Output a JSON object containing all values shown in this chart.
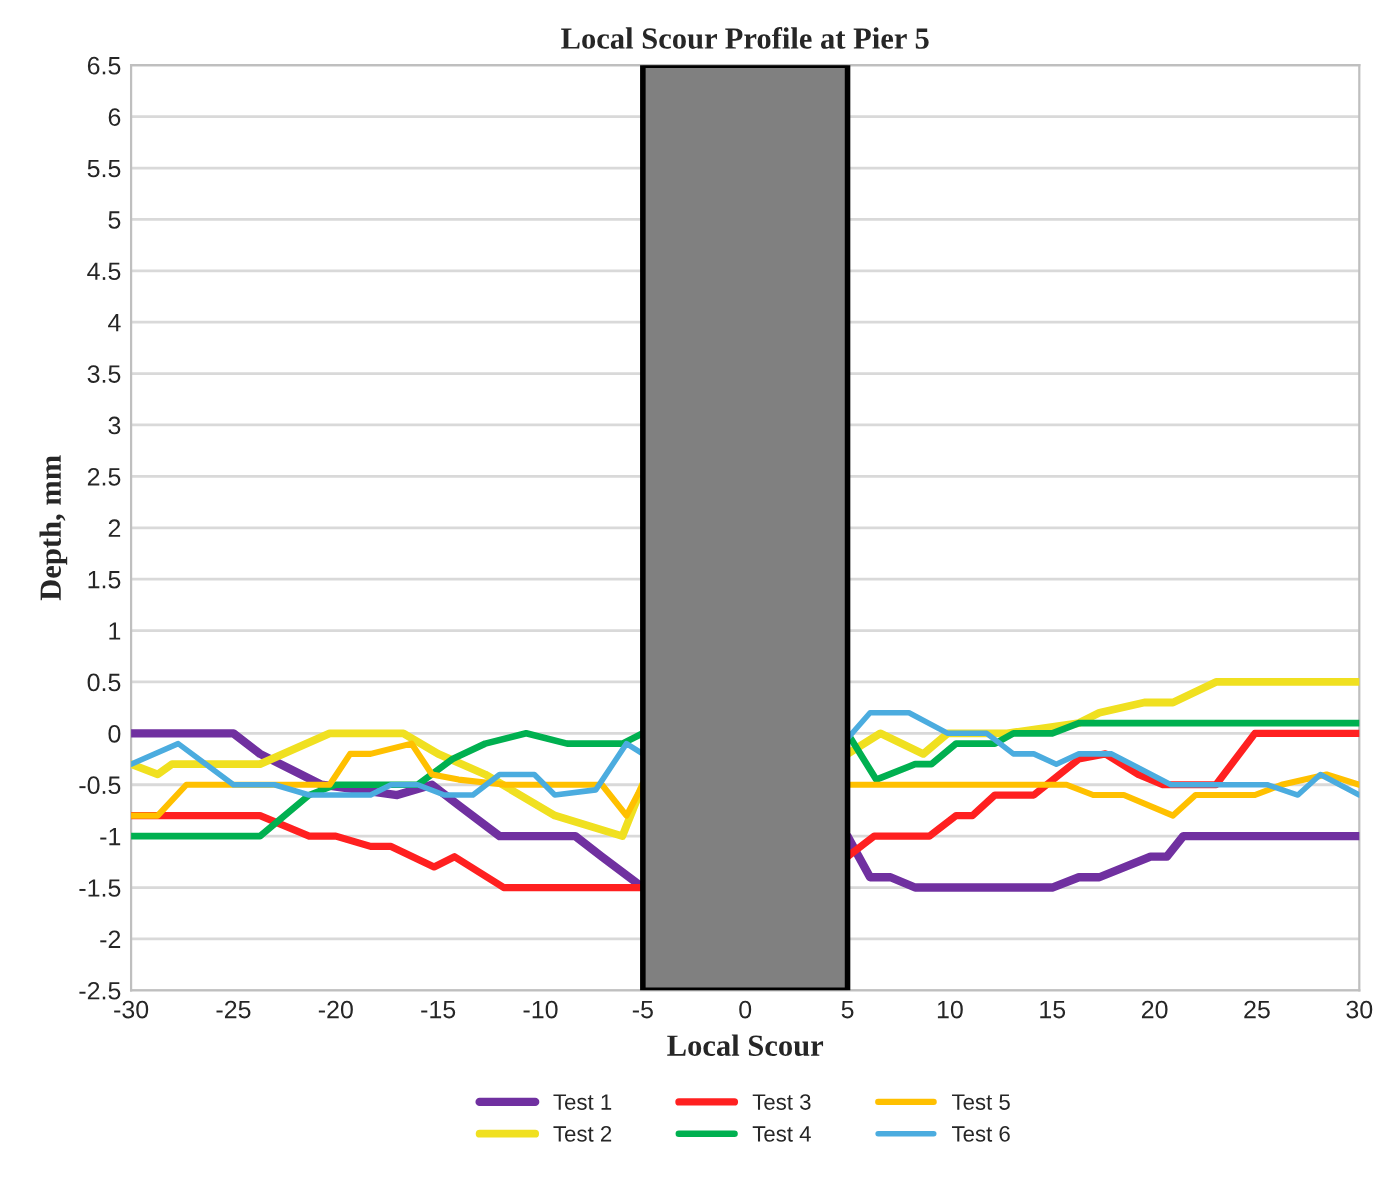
{
  "chart_data": {
    "type": "line",
    "title": "Local Scour Profile at Pier 5",
    "xlabel": "Local Scour",
    "ylabel": "Depth, mm",
    "series": [
      {
        "name": "Test 1",
        "color": "#7030a0",
        "x": [
          -30,
          -25,
          -23.7,
          -20.7,
          -17,
          -15.3,
          -14,
          -12,
          -8.3,
          -7,
          -5,
          null,
          5,
          6.1,
          7.1,
          8.3,
          15,
          16.3,
          17.3,
          19.8,
          20.6,
          21.4,
          30
        ],
        "values": [
          0,
          0,
          -0.2,
          -0.5,
          -0.6,
          -0.5,
          -0.7,
          -1,
          -1,
          -1.2,
          -1.5,
          null,
          -1,
          -1.4,
          -1.4,
          -1.5,
          -1.5,
          -1.4,
          -1.4,
          -1.2,
          -1.2,
          -1,
          -1
        ]
      },
      {
        "name": "Test 2",
        "color": "#f0e020",
        "x": [
          -30,
          -28.7,
          -28,
          -23.7,
          -20.3,
          -16.7,
          -15,
          -12.7,
          -9.3,
          -6,
          -5,
          null,
          5,
          6.6,
          8.7,
          9.9,
          12.8,
          16.3,
          17.3,
          19.5,
          20.9,
          23,
          30
        ],
        "values": [
          -0.3,
          -0.4,
          -0.3,
          -0.3,
          0,
          0,
          -0.2,
          -0.4,
          -0.8,
          -1,
          -0.5,
          null,
          -0.2,
          0,
          -0.2,
          0,
          0,
          0.1,
          0.2,
          0.3,
          0.3,
          0.5,
          0.5
        ]
      },
      {
        "name": "Test 3",
        "color": "#ff2020",
        "x": [
          -30,
          -23.7,
          -21.3,
          -20,
          -18.3,
          -17.3,
          -15.2,
          -14.2,
          -11.8,
          -5,
          null,
          5,
          6.3,
          9,
          10.3,
          11.1,
          12.2,
          14.1,
          16.3,
          17.6,
          19.2,
          20.4,
          23,
          24.9,
          30
        ],
        "values": [
          -0.8,
          -0.8,
          -1,
          -1,
          -1.1,
          -1.1,
          -1.3,
          -1.2,
          -1.5,
          -1.5,
          null,
          -1.2,
          -1,
          -1,
          -0.8,
          -0.8,
          -0.6,
          -0.6,
          -0.25,
          -0.2,
          -0.4,
          -0.5,
          -0.5,
          0,
          0
        ]
      },
      {
        "name": "Test 4",
        "color": "#00b050",
        "x": [
          -30,
          -23.7,
          -21.3,
          -20,
          -16,
          -14.3,
          -12.7,
          -10.7,
          -8.7,
          -6,
          -5,
          null,
          5,
          6.4,
          8.3,
          9.1,
          10.3,
          12.2,
          13.1,
          15,
          16.3,
          30
        ],
        "values": [
          -1,
          -1,
          -0.6,
          -0.5,
          -0.5,
          -0.25,
          -0.1,
          0,
          -0.1,
          -0.1,
          0,
          null,
          0,
          -0.45,
          -0.3,
          -0.3,
          -0.1,
          -0.1,
          0,
          0,
          0.1,
          0.1
        ]
      },
      {
        "name": "Test 5",
        "color": "#ffc000",
        "x": [
          -30,
          -28.7,
          -27.3,
          -20.3,
          -19.3,
          -18.3,
          -16.3,
          -15.3,
          -14,
          -11.7,
          -7,
          -5.8,
          -5,
          null,
          5,
          15.7,
          17,
          18.5,
          20.9,
          22,
          24.9,
          26.2,
          28.4,
          30
        ],
        "values": [
          -0.8,
          -0.8,
          -0.5,
          -0.5,
          -0.2,
          -0.2,
          -0.1,
          -0.4,
          -0.45,
          -0.5,
          -0.5,
          -0.8,
          -0.5,
          null,
          -0.5,
          -0.5,
          -0.6,
          -0.6,
          -0.8,
          -0.6,
          -0.6,
          -0.5,
          -0.4,
          -0.5
        ]
      },
      {
        "name": "Test 6",
        "color": "#4bacdf",
        "x": [
          -30,
          -27.7,
          -25,
          -23,
          -21.3,
          -18.3,
          -17.3,
          -16,
          -14.7,
          -13.3,
          -12,
          -10.3,
          -9.3,
          -7.3,
          -5.8,
          -5,
          null,
          5,
          6.1,
          8,
          9.9,
          11.8,
          13.1,
          14.1,
          15.2,
          16.3,
          17.9,
          20.8,
          25.5,
          27,
          28.1,
          30
        ],
        "values": [
          -0.3,
          -0.1,
          -0.5,
          -0.5,
          -0.6,
          -0.6,
          -0.5,
          -0.5,
          -0.6,
          -0.6,
          -0.4,
          -0.4,
          -0.6,
          -0.55,
          -0.1,
          -0.2,
          null,
          -0.05,
          0.2,
          0.2,
          0,
          0,
          -0.2,
          -0.2,
          -0.3,
          -0.2,
          -0.2,
          -0.5,
          -0.5,
          -0.6,
          -0.4,
          -0.6
        ]
      }
    ],
    "bands": [
      {
        "axis": "x",
        "from": -5,
        "to": 5,
        "color": "#808080"
      }
    ],
    "xlim": [
      -30,
      30
    ],
    "xticks": [
      -30,
      -25,
      -20,
      -15,
      -10,
      -5,
      0,
      5,
      10,
      15,
      20,
      25,
      30
    ],
    "ylim": [
      -2.5,
      6.5
    ],
    "yticks": [
      -2.5,
      -2,
      -1.5,
      -1,
      -0.5,
      0,
      0.5,
      1,
      1.5,
      2,
      2.5,
      3,
      3.5,
      4,
      4.5,
      5,
      5.5,
      6,
      6.5
    ],
    "grid": "y",
    "legend": "bottom",
    "marker": "none",
    "line_style": "solid"
  }
}
